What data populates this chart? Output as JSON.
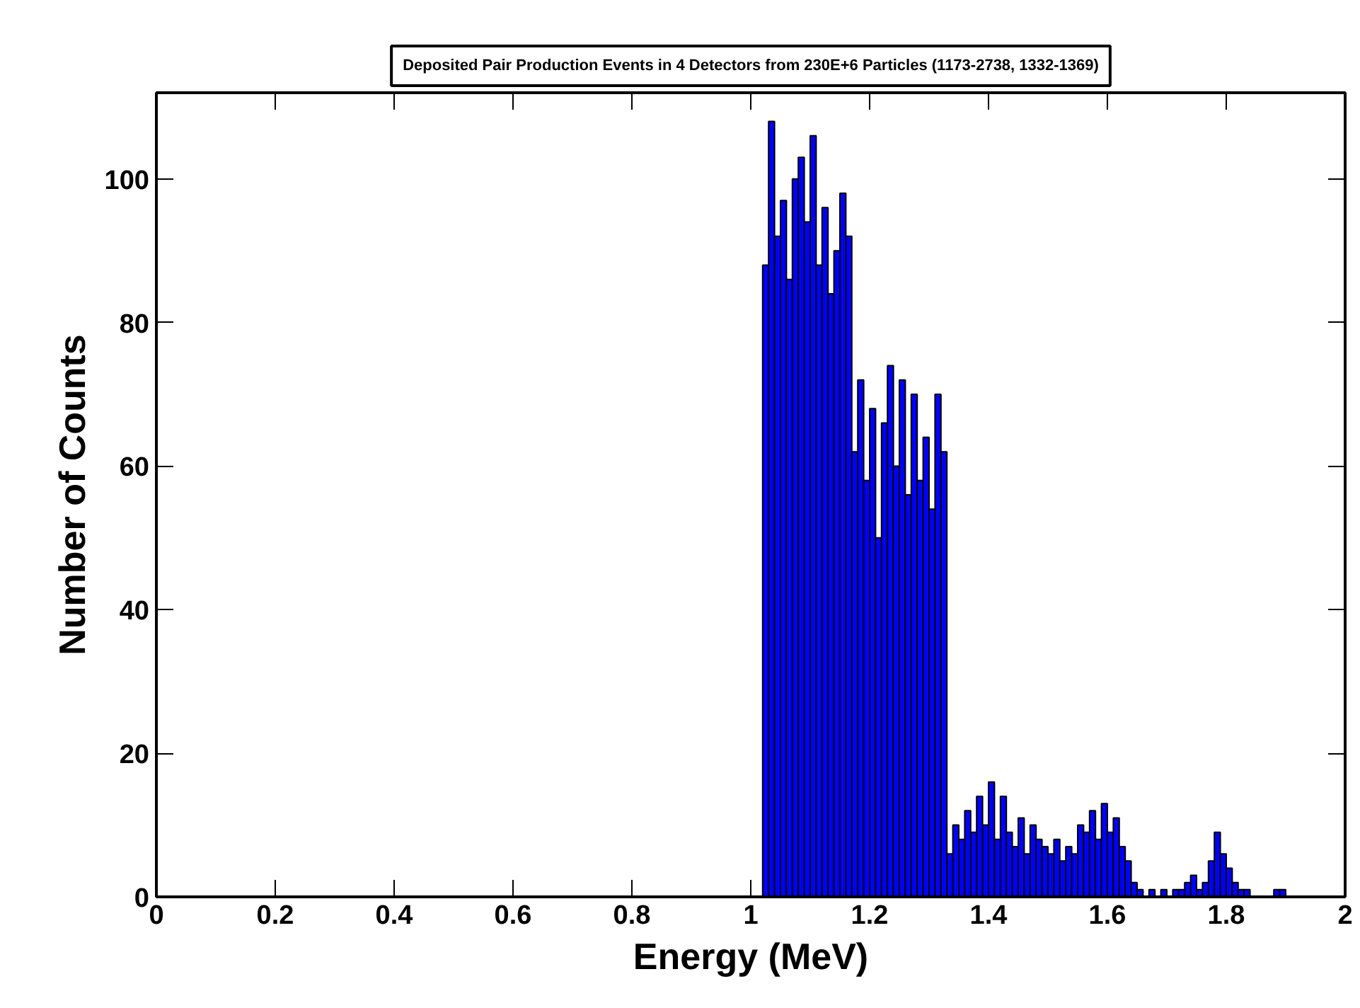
{
  "chart_data": {
    "type": "histogram",
    "title": "Deposited Pair Production Events in 4 Detectors from 230E+6 Particles (1173-2738, 1332-1369)",
    "xlabel": "Energy (MeV)",
    "ylabel": "Number of Counts",
    "color": "#0000ff",
    "bins": [
      1.02,
      1.03,
      1.04,
      1.05,
      1.06,
      1.07,
      1.08,
      1.09,
      1.1,
      1.11,
      1.12,
      1.13,
      1.14,
      1.15,
      1.16,
      1.17,
      1.18,
      1.19,
      1.2,
      1.21,
      1.22,
      1.23,
      1.24,
      1.25,
      1.26,
      1.27,
      1.28,
      1.29,
      1.3,
      1.31,
      1.32,
      1.33,
      1.34,
      1.35,
      1.36,
      1.37,
      1.38,
      1.39,
      1.4,
      1.41,
      1.42,
      1.43,
      1.44,
      1.45,
      1.46,
      1.47,
      1.48,
      1.49,
      1.5,
      1.51,
      1.52,
      1.53,
      1.54,
      1.55,
      1.56,
      1.57,
      1.58,
      1.59,
      1.6,
      1.61,
      1.62,
      1.63,
      1.64,
      1.65,
      1.66,
      1.67,
      1.68,
      1.69,
      1.7,
      1.71,
      1.72,
      1.73,
      1.74,
      1.75,
      1.76,
      1.77,
      1.78,
      1.79,
      1.8,
      1.81,
      1.82,
      1.83,
      1.84,
      1.85,
      1.86,
      1.87,
      1.88,
      1.89,
      1.9
    ],
    "values": [
      88,
      108,
      92,
      97,
      86,
      100,
      103,
      94,
      106,
      88,
      96,
      84,
      90,
      98,
      92,
      62,
      72,
      58,
      68,
      50,
      66,
      74,
      60,
      72,
      56,
      70,
      58,
      64,
      54,
      70,
      62,
      6,
      10,
      8,
      12,
      9,
      14,
      10,
      16,
      8,
      14,
      9,
      7,
      11,
      6,
      10,
      8,
      7,
      6,
      8,
      5,
      7,
      6,
      10,
      9,
      12,
      8,
      13,
      9,
      11,
      7,
      5,
      2,
      1,
      0,
      1,
      0,
      1,
      0,
      1,
      1,
      2,
      3,
      1,
      2,
      5,
      9,
      6,
      4,
      2,
      1,
      1,
      0,
      0,
      0,
      0,
      1,
      1
    ],
    "xlim": [
      0,
      2
    ],
    "ylim": [
      0,
      112
    ],
    "xticks": [
      0,
      0.2,
      0.4,
      0.6,
      0.8,
      1,
      1.2,
      1.4,
      1.6,
      1.8,
      2
    ],
    "yticks": [
      0,
      20,
      40,
      60,
      80,
      100
    ],
    "grid": false
  }
}
